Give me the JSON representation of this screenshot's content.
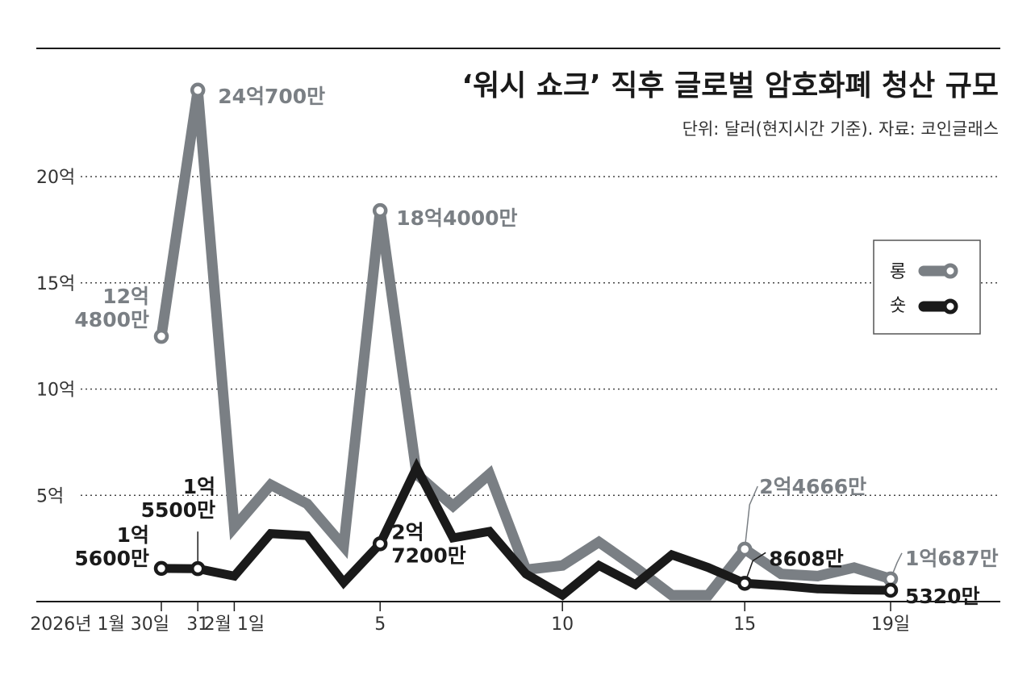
{
  "chart_data": {
    "type": "line",
    "title": "‘워시 쇼크’ 직후 글로벌 암호화폐 청산 규모",
    "subtitle": "단위: 달러(현지시간 기준). 자료: 코인글래스",
    "xlabel": "",
    "ylabel": "",
    "ylim": [
      0,
      2500000000
    ],
    "grid": true,
    "yticks": [
      {
        "value": 500000000,
        "label": "5억"
      },
      {
        "value": 1000000000,
        "label": "10억"
      },
      {
        "value": 1500000000,
        "label": "15억"
      },
      {
        "value": 2000000000,
        "label": "20억"
      }
    ],
    "xticks": [
      {
        "index": 0,
        "label": "2026년 1월 30일"
      },
      {
        "index": 1,
        "label": "31"
      },
      {
        "index": 2,
        "label": "2월 1일"
      },
      {
        "index": 6,
        "label": "5"
      },
      {
        "index": 11,
        "label": "10"
      },
      {
        "index": 16,
        "label": "15"
      },
      {
        "index": 20,
        "label": "19일"
      }
    ],
    "categories": [
      "1/30",
      "1/31",
      "2/1",
      "2/2",
      "2/3",
      "2/4",
      "2/5",
      "2/6",
      "2/7",
      "2/8",
      "2/9",
      "2/10",
      "2/11",
      "2/12",
      "2/13",
      "2/14",
      "2/15",
      "2/16",
      "2/17",
      "2/18",
      "2/19"
    ],
    "series": [
      {
        "name": "롱",
        "color": "#7a7f84",
        "values": [
          1248000000,
          2407000000,
          350000000,
          550000000,
          460000000,
          260000000,
          1840000000,
          600000000,
          450000000,
          600000000,
          150000000,
          170000000,
          280000000,
          160000000,
          30000000,
          30000000,
          246660000,
          130000000,
          120000000,
          160000000,
          106870000
        ]
      },
      {
        "name": "숏",
        "color": "#1a1a1a",
        "values": [
          156000000,
          155000000,
          120000000,
          320000000,
          310000000,
          90000000,
          272000000,
          630000000,
          300000000,
          330000000,
          130000000,
          30000000,
          170000000,
          80000000,
          220000000,
          160000000,
          86080000,
          75000000,
          60000000,
          55000000,
          53200000
        ]
      }
    ],
    "annotations": [
      {
        "series": 0,
        "index": 0,
        "lines": [
          "12억",
          "4800만"
        ]
      },
      {
        "series": 0,
        "index": 1,
        "lines": [
          "24억700만"
        ]
      },
      {
        "series": 0,
        "index": 6,
        "lines": [
          "18억4000만"
        ]
      },
      {
        "series": 0,
        "index": 16,
        "lines": [
          "2억4666만"
        ]
      },
      {
        "series": 0,
        "index": 20,
        "lines": [
          "1억687만"
        ]
      },
      {
        "series": 1,
        "index": 0,
        "lines": [
          "1억",
          "5600만"
        ]
      },
      {
        "series": 1,
        "index": 1,
        "lines": [
          "1억",
          "5500만"
        ]
      },
      {
        "series": 1,
        "index": 6,
        "lines": [
          "2억",
          "7200만"
        ]
      },
      {
        "series": 1,
        "index": 16,
        "lines": [
          "8608만"
        ]
      },
      {
        "series": 1,
        "index": 20,
        "lines": [
          "5320만"
        ]
      }
    ],
    "legend": {
      "position": "right",
      "items": [
        "롱",
        "숏"
      ]
    }
  }
}
